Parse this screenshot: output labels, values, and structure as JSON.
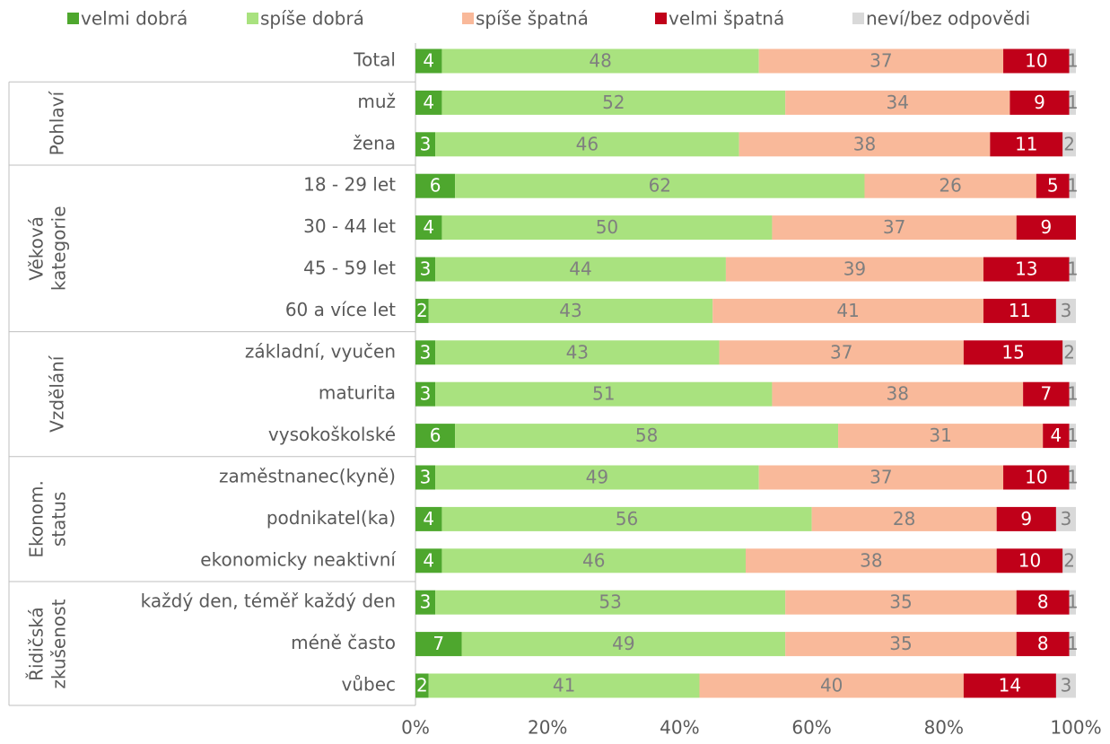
{
  "chart_data": {
    "type": "stacked_bar_horizontal",
    "categories": [
      "Total",
      "muž",
      "žena",
      "18 - 29 let",
      "30 - 44 let",
      "45 - 59 let",
      "60 a více let",
      "základní, vyučen",
      "maturita",
      "vysokoškolské",
      "zaměstnanec(kyně)",
      "podnikatel(ka)",
      "ekonomicky neaktivní",
      "každý den, téměř každý den",
      "méně často",
      "vůbec"
    ],
    "groups": [
      [
        "Pohlaví"
      ],
      [
        "Věková",
        "kategorie"
      ],
      [
        "Vzdělání"
      ],
      [
        "Ekonom.",
        "status"
      ],
      [
        "Řidičská",
        "zkušenost"
      ]
    ],
    "series": [
      {
        "name": "velmi dobrá",
        "color": "#4ea72e",
        "label_color": "#ffffff",
        "values": [
          4,
          4,
          3,
          6,
          4,
          3,
          2,
          3,
          3,
          6,
          3,
          4,
          4,
          3,
          7,
          2
        ]
      },
      {
        "name": "spíše dobrá",
        "color": "#a9e27f",
        "label_color": "#7f7f7f",
        "values": [
          48,
          52,
          46,
          62,
          50,
          44,
          43,
          43,
          51,
          58,
          49,
          56,
          46,
          53,
          49,
          41
        ]
      },
      {
        "name": "spíše špatná",
        "color": "#f9b99a",
        "label_color": "#7f7f7f",
        "values": [
          37,
          34,
          38,
          26,
          37,
          39,
          41,
          37,
          38,
          31,
          37,
          28,
          38,
          35,
          35,
          40
        ]
      },
      {
        "name": "velmi špatná",
        "color": "#c00019",
        "label_color": "#ffffff",
        "values": [
          10,
          9,
          11,
          5,
          9,
          13,
          11,
          15,
          7,
          4,
          10,
          9,
          10,
          8,
          8,
          14
        ]
      },
      {
        "name": "neví/bez odpovědi",
        "color": "#d9d9d9",
        "label_color": "#7f7f7f",
        "values": [
          1,
          1,
          2,
          1,
          null,
          1,
          3,
          2,
          1,
          1,
          1,
          3,
          2,
          1,
          1,
          3
        ]
      }
    ],
    "xlim": [
      0,
      100
    ],
    "xticks": [
      {
        "value": 0,
        "label": "0%"
      },
      {
        "value": 20,
        "label": "20%"
      },
      {
        "value": 40,
        "label": "40%"
      },
      {
        "value": 60,
        "label": "60%"
      },
      {
        "value": 80,
        "label": "80%"
      },
      {
        "value": 100,
        "label": "100%"
      }
    ]
  }
}
